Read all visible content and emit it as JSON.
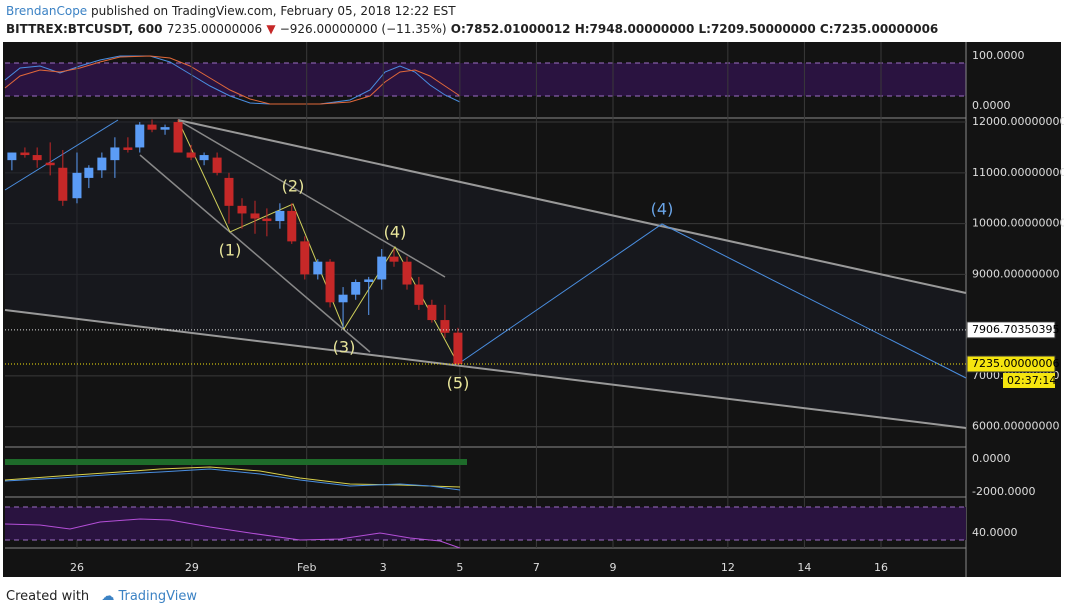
{
  "header": {
    "author": "BrendanCope",
    "published": "published on TradingView.com, February 05, 2018 12:22 EST",
    "symbol": "BITTREX:BTCUSDT, 600",
    "last": "7235.00000006",
    "change": "−926.00000000 (−11.35%)",
    "open": "O:7852.01000012",
    "high": "H:7948.00000000",
    "low": "L:7209.50000000",
    "close": "C:7235.00000006"
  },
  "chart_data": {
    "type": "candlestick",
    "x": [
      -1.7,
      -1.36,
      -1.04,
      -0.7,
      -0.37,
      0,
      0.31,
      0.65,
      0.99,
      1.33,
      1.64,
      1.96,
      2.3,
      2.64,
      2.98,
      3.32,
      3.66,
      3.97,
      4.31,
      4.65,
      4.96,
      5.3,
      5.61,
      5.95,
      6.29,
      6.61,
      6.95,
      7.28,
      7.62,
      7.96,
      8.28,
      8.62,
      8.93,
      9.27,
      9.61,
      9.95
    ],
    "open": [
      11250,
      11400,
      11350,
      11200,
      11100,
      10500,
      10900,
      11050,
      11250,
      11500,
      11500,
      11950,
      11850,
      12000,
      11400,
      11250,
      11300,
      10900,
      10350,
      10200,
      10100,
      10050,
      10250,
      9650,
      9000,
      9250,
      8450,
      8600,
      8850,
      8900,
      9350,
      9250,
      8800,
      8400,
      8100,
      7852.01000012
    ],
    "high": [
      11400,
      11500,
      11500,
      11600,
      11450,
      11400,
      11150,
      11400,
      11700,
      11700,
      12000,
      12050,
      11950,
      12050,
      11550,
      11400,
      11400,
      11000,
      10500,
      10450,
      10300,
      10400,
      10400,
      9750,
      9300,
      9300,
      8750,
      8900,
      8950,
      9500,
      9500,
      9350,
      8950,
      8500,
      8400,
      7948
    ],
    "low": [
      11050,
      11300,
      11100,
      10950,
      10350,
      10400,
      10700,
      10900,
      10900,
      11400,
      11400,
      11800,
      11750,
      11400,
      11250,
      11150,
      10950,
      10000,
      9900,
      9800,
      9750,
      9900,
      9600,
      8900,
      8900,
      8350,
      7950,
      8500,
      8200,
      8700,
      9150,
      8700,
      8300,
      8050,
      7750,
      7209.5
    ],
    "close": [
      11400,
      11350,
      11250,
      11150,
      10450,
      11000,
      11100,
      11300,
      11500,
      11450,
      11950,
      11850,
      11900,
      11400,
      11300,
      11350,
      11000,
      10350,
      10200,
      10100,
      10050,
      10250,
      9650,
      9000,
      9250,
      8450,
      8600,
      8850,
      8900,
      9350,
      9250,
      8800,
      8400,
      8100,
      7850,
      7235.00000006
    ],
    "up_color": "#5b9cf6",
    "down_color": "#c62828",
    "xlim": [
      -1.88,
      23.22
    ],
    "xticks": [
      {
        "value": 0,
        "label": "26"
      },
      {
        "value": 3,
        "label": "29"
      },
      {
        "value": 6,
        "label": "Feb"
      },
      {
        "value": 8,
        "label": "3"
      },
      {
        "value": 10,
        "label": "5"
      },
      {
        "value": 12,
        "label": "7"
      },
      {
        "value": 14,
        "label": "9"
      },
      {
        "value": 17,
        "label": "12"
      },
      {
        "value": 19,
        "label": "14"
      },
      {
        "value": 21,
        "label": "16"
      }
    ],
    "ylim": [
      5600,
      12080
    ],
    "yticks": [
      {
        "value": 12000,
        "label": "12000.00000000"
      },
      {
        "value": 11000,
        "label": "11000.00000000"
      },
      {
        "value": 10000,
        "label": "10000.00000000"
      },
      {
        "value": 9000,
        "label": "9000.00000000"
      },
      {
        "value": 7000,
        "label": "7000.00000000"
      },
      {
        "value": 6000,
        "label": "6000.00000000"
      }
    ],
    "price_markers": [
      {
        "value": 7906.70350395,
        "label": "7906.70350395",
        "color": "#dddddd"
      },
      {
        "value": 7235.00000006,
        "label": "7235.00000006",
        "color": "#f5e50f"
      }
    ],
    "countdown": "02:37:14",
    "grid": true,
    "annotations": [
      "(1)",
      "(2)",
      "(3)",
      "(4)",
      "(5)",
      "(4)"
    ]
  },
  "indicators": {
    "stoch_top": "100.0000",
    "stoch_bottom": "0.0000",
    "macd_zero": "0.0000",
    "macd_low": "-2000.0000",
    "rsi": "40.0000"
  },
  "footer": {
    "created": "Created with",
    "brand": "TradingView"
  }
}
